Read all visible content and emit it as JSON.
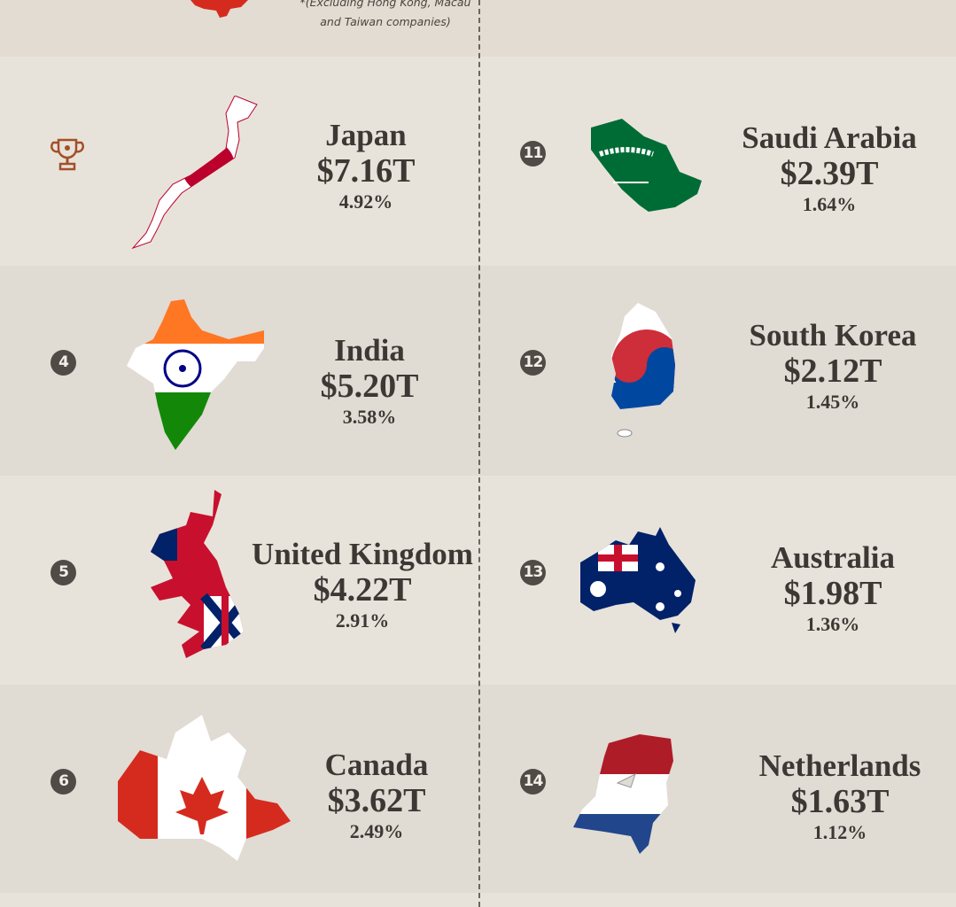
{
  "note": "*(Excluding Hong Kong, Macau and Taiwan companies)",
  "left": [
    {
      "rank": null,
      "name": "Japan",
      "value": "$7.16T",
      "share": "4.92%"
    },
    {
      "rank": "4",
      "name": "India",
      "value": "$5.20T",
      "share": "3.58%"
    },
    {
      "rank": "5",
      "name": "United Kingdom",
      "value": "$4.22T",
      "share": "2.91%"
    },
    {
      "rank": "6",
      "name": "Canada",
      "value": "$3.62T",
      "share": "2.49%"
    }
  ],
  "right": [
    {
      "rank": "11",
      "name": "Saudi Arabia",
      "value": "$2.39T",
      "share": "1.64%"
    },
    {
      "rank": "12",
      "name": "South Korea",
      "value": "$2.12T",
      "share": "1.45%"
    },
    {
      "rank": "13",
      "name": "Australia",
      "value": "$1.98T",
      "share": "1.36%"
    },
    {
      "rank": "14",
      "name": "Netherlands",
      "value": "$1.63T",
      "share": "1.12%"
    }
  ]
}
